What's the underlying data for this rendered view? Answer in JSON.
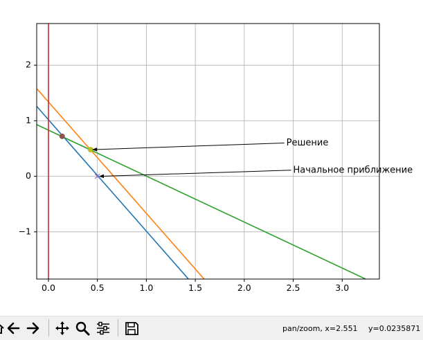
{
  "chart_data": {
    "type": "line",
    "title": "",
    "xlabel": "",
    "ylabel": "",
    "xlim": [
      -0.12,
      3.38
    ],
    "ylim": [
      -1.85,
      2.75
    ],
    "x_ticks": [
      0.0,
      0.5,
      1.0,
      1.5,
      2.0,
      2.5,
      3.0
    ],
    "x_tick_labels": [
      "0.0",
      "0.5",
      "1.0",
      "1.5",
      "2.0",
      "2.5",
      "3.0"
    ],
    "y_ticks": [
      -1,
      0,
      1,
      2
    ],
    "y_tick_labels": [
      "−1",
      "0",
      "1",
      "2"
    ],
    "grid": true,
    "legend": false,
    "series": [
      {
        "color": "#1f77b4",
        "x": [
          -0.12,
          1.43
        ],
        "y": [
          1.26,
          -1.85
        ]
      },
      {
        "color": "#ff7f0e",
        "x": [
          -0.12,
          1.59
        ],
        "y": [
          1.58,
          -1.85
        ]
      },
      {
        "color": "#2ca02c",
        "x": [
          -0.12,
          3.24
        ],
        "y": [
          0.93,
          -1.85
        ]
      },
      {
        "color": "#d62728",
        "x": [
          0.0,
          0.0
        ],
        "y": [
          -1.85,
          2.75
        ]
      }
    ],
    "points": [
      {
        "x": 0.14,
        "y": 0.72,
        "color": "#8c564b",
        "marker": "o"
      },
      {
        "x": 0.43,
        "y": 0.48,
        "color": "#bcbd22",
        "marker": "o"
      },
      {
        "x": 0.5,
        "y": 0.0,
        "color": "#9467bd",
        "marker": "x"
      }
    ],
    "annotations": [
      {
        "text": "Решение",
        "xy": [
          0.43,
          0.48
        ],
        "xytext": [
          2.43,
          0.6
        ]
      },
      {
        "text": "Начальное приближение",
        "xy": [
          0.5,
          0.0
        ],
        "xytext": [
          2.5,
          0.11
        ]
      }
    ]
  },
  "toolbar": {
    "buttons": [
      {
        "name": "home-icon",
        "icon": "home"
      },
      {
        "name": "back-icon",
        "icon": "arrow-left"
      },
      {
        "name": "forward-icon",
        "icon": "arrow-right"
      },
      {
        "name": "pan-icon",
        "icon": "move"
      },
      {
        "name": "zoom-icon",
        "icon": "magnifier"
      },
      {
        "name": "configure-subplots-icon",
        "icon": "sliders"
      },
      {
        "name": "save-icon",
        "icon": "floppy"
      }
    ],
    "status_mode": "pan/zoom, x=2.551",
    "status_y": "y=0.0235871"
  }
}
